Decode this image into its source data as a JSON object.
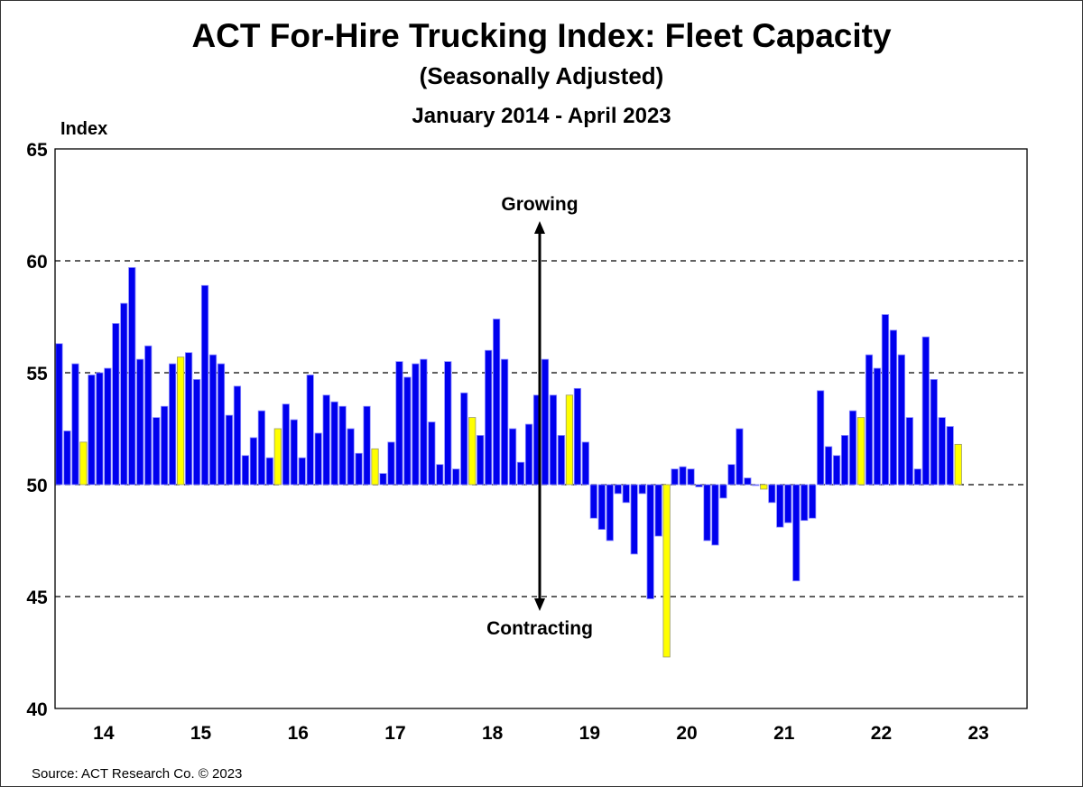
{
  "chart_data": {
    "type": "bar",
    "title": "ACT For-Hire Trucking Index: Fleet Capacity",
    "subtitle": "(Seasonally Adjusted)",
    "period": "January 2014 - April 2023",
    "ylabel": "Index",
    "xlabel": "",
    "ylim": [
      40,
      65
    ],
    "yticks": [
      "40",
      "45",
      "50",
      "55",
      "60",
      "65"
    ],
    "xticks": [
      "14",
      "15",
      "16",
      "17",
      "18",
      "19",
      "20",
      "21",
      "22",
      "23"
    ],
    "x_start": "2014-01",
    "x_end": "2023-04",
    "baseline": 50,
    "grid": "dashed horizontal at 45, 50, 55, 60",
    "legend": "none",
    "highlight_month": "April",
    "colors": {
      "bar": "#0000ee",
      "highlight": "#ffff00"
    },
    "annotations": {
      "up": "Growing",
      "down": "Contracting"
    },
    "values": [
      56.3,
      52.4,
      55.4,
      51.9,
      54.9,
      55.0,
      55.2,
      57.2,
      58.1,
      59.7,
      55.6,
      56.2,
      53.0,
      53.5,
      55.4,
      55.7,
      55.9,
      54.7,
      58.9,
      55.8,
      55.4,
      53.1,
      54.4,
      51.3,
      52.1,
      53.3,
      51.2,
      52.5,
      53.6,
      52.9,
      51.2,
      54.9,
      52.3,
      54.0,
      53.7,
      53.5,
      52.5,
      51.4,
      53.5,
      51.6,
      50.5,
      51.9,
      55.5,
      54.8,
      55.4,
      55.6,
      52.8,
      50.9,
      55.5,
      50.7,
      54.1,
      53.0,
      52.2,
      56.0,
      57.4,
      55.6,
      52.5,
      51.0,
      52.7,
      54.0,
      55.6,
      54.0,
      52.2,
      54.0,
      54.3,
      51.9,
      48.5,
      48.0,
      47.5,
      49.6,
      49.2,
      46.9,
      49.6,
      44.9,
      47.7,
      42.3,
      50.7,
      50.8,
      50.7,
      49.9,
      47.5,
      47.3,
      49.4,
      50.9,
      52.5,
      50.3,
      50.0,
      49.8,
      49.2,
      48.1,
      48.3,
      45.7,
      48.4,
      48.5,
      54.2,
      51.7,
      51.3,
      52.2,
      53.3,
      53.0,
      55.8,
      55.2,
      57.6,
      56.9,
      55.8,
      53.0,
      50.7,
      56.6,
      54.7,
      53.0,
      52.6,
      51.8
    ]
  },
  "source": "Source: ACT Research Co. © 2023"
}
